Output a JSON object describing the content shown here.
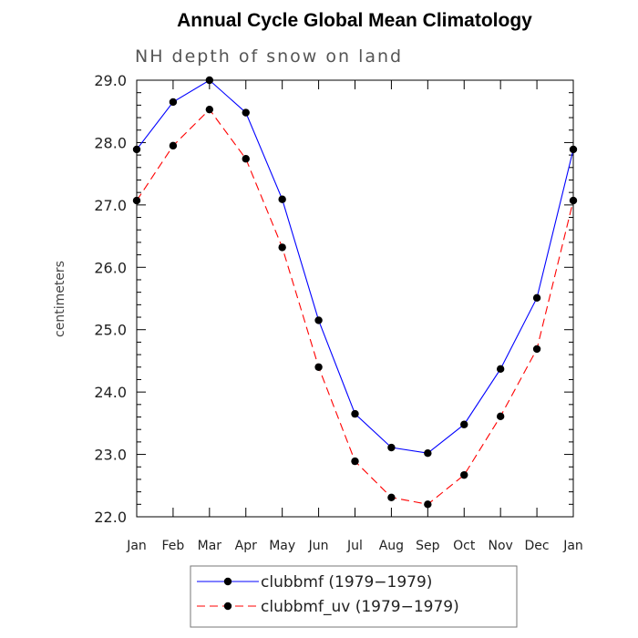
{
  "chart_data": {
    "type": "line",
    "title": "Annual Cycle Global Mean Climatology",
    "subtitle": "NH depth of snow on land",
    "xlabel": "",
    "ylabel": "centimeters",
    "categories": [
      "Jan",
      "Feb",
      "Mar",
      "Apr",
      "May",
      "Jun",
      "Jul",
      "Aug",
      "Sep",
      "Oct",
      "Nov",
      "Dec",
      "Jan"
    ],
    "ylim": [
      22.0,
      29.0
    ],
    "yticks": [
      "22.0",
      "23.0",
      "24.0",
      "25.0",
      "26.0",
      "27.0",
      "28.0",
      "29.0"
    ],
    "grid": false,
    "legend_position": "bottom",
    "series": [
      {
        "name": "clubbmf (1979−1979)",
        "color": "#0000ff",
        "dash": "solid",
        "marker": "filled-circle",
        "values": [
          27.89,
          28.65,
          29.0,
          28.48,
          27.09,
          25.15,
          23.65,
          23.11,
          23.02,
          23.48,
          24.37,
          25.51,
          27.89
        ]
      },
      {
        "name": "clubbmf_uv (1979−1979)",
        "color": "#ff0000",
        "dash": "dashed",
        "marker": "filled-circle",
        "values": [
          27.07,
          27.95,
          28.53,
          27.74,
          26.32,
          24.4,
          22.89,
          22.31,
          22.2,
          22.67,
          23.61,
          24.69,
          27.07
        ]
      }
    ]
  }
}
